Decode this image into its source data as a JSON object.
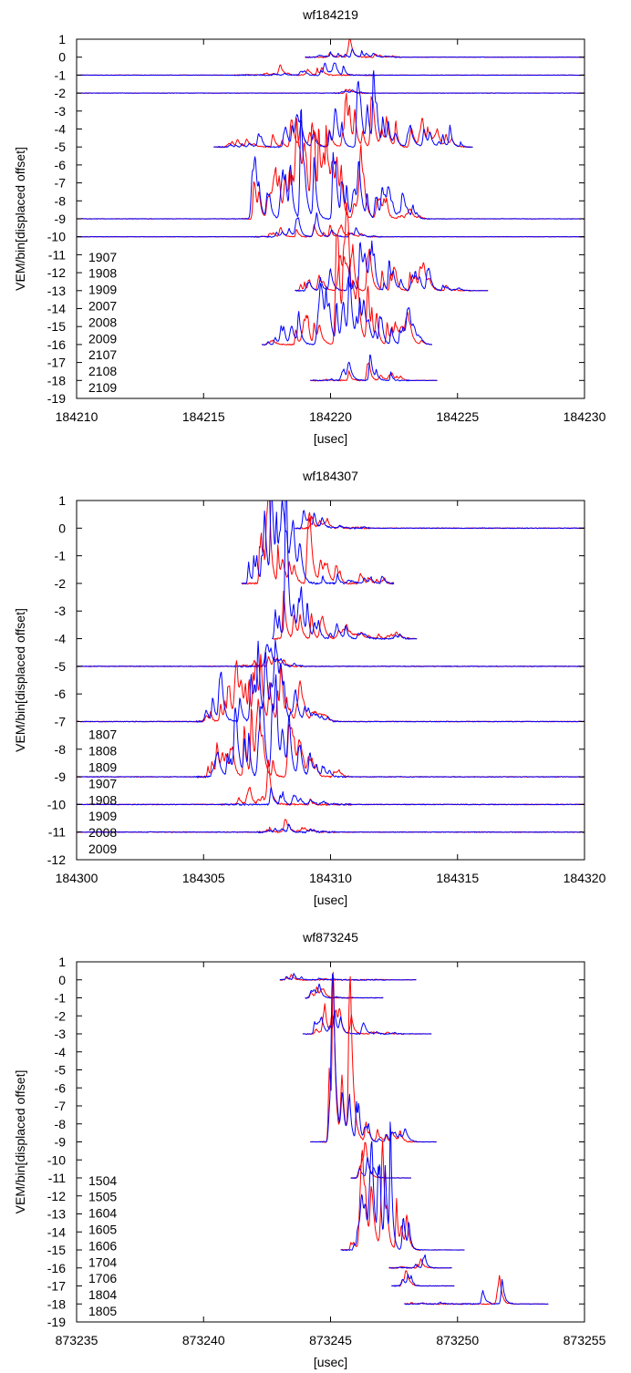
{
  "chart_data": [
    {
      "type": "line",
      "title": "wf184219",
      "xlabel": "[usec]",
      "ylabel": "VEM/bin[displaced offset]",
      "xlim": [
        184210,
        184230
      ],
      "ylim": [
        -19,
        1
      ],
      "xticks": [
        "184210",
        "184215",
        "184220",
        "184225",
        "184230"
      ],
      "yticks": [
        "1",
        "0",
        "-1",
        "-2",
        "-3",
        "-4",
        "-5",
        "-6",
        "-7",
        "-8",
        "-9",
        "-10",
        "-11",
        "-12",
        "-13",
        "-14",
        "-15",
        "-16",
        "-17",
        "-18",
        "-19"
      ],
      "legend_position": "bottom-left",
      "labels": [
        "1907",
        "1908",
        "1909",
        "2007",
        "2008",
        "2009",
        "2107",
        "2108",
        "2109"
      ],
      "colors": {
        "red": "#ff0000",
        "blue": "#0000ff"
      },
      "traces": [
        {
          "baseline": 0,
          "x_start": 184219.0,
          "x_end": 184230,
          "activity": [
            184219.2,
            184222.5
          ],
          "peak_x": 184220.8,
          "peak_amp": 0.5,
          "density": 10
        },
        {
          "baseline": -1,
          "x_start": 184210,
          "x_end": 184230,
          "activity": [
            184216.5,
            184221.5
          ],
          "peak_x": 184219.7,
          "peak_amp": 0.5,
          "density": 14
        },
        {
          "baseline": -2,
          "x_start": 184210,
          "x_end": 184230,
          "activity": [
            184220.4,
            184221.2
          ],
          "peak_x": 184220.8,
          "peak_amp": 0.2,
          "density": 3
        },
        {
          "baseline": -5,
          "x_start": 184215.4,
          "x_end": 184225.6,
          "activity": [
            184215.8,
            184225.2
          ],
          "peak_x": 184221.0,
          "peak_amp": 2.3,
          "density": 40
        },
        {
          "baseline": -9,
          "x_start": 184210,
          "x_end": 184230,
          "activity": [
            184216.8,
            184223.6
          ],
          "peak_x": 184219.3,
          "peak_amp": 3.6,
          "density": 52
        },
        {
          "baseline": -10,
          "x_start": 184210,
          "x_end": 184230,
          "activity": [
            184217.3,
            184221.7
          ],
          "peak_x": 184219.4,
          "peak_amp": 0.8,
          "density": 14
        },
        {
          "baseline": -13,
          "x_start": 184218.6,
          "x_end": 184226.2,
          "activity": [
            184218.8,
            184225.2
          ],
          "peak_x": 184221.5,
          "peak_amp": 1.9,
          "density": 32
        },
        {
          "baseline": -16,
          "x_start": 184217.3,
          "x_end": 184224.0,
          "activity": [
            184217.5,
            184223.6
          ],
          "peak_x": 184220.7,
          "peak_amp": 2.6,
          "density": 44
        },
        {
          "baseline": -18,
          "x_start": 184219.2,
          "x_end": 184224.2,
          "activity": [
            184219.6,
            184222.8
          ],
          "peak_x": 184221.5,
          "peak_amp": 1.1,
          "density": 8
        }
      ]
    },
    {
      "type": "line",
      "title": "wf184307",
      "xlabel": "[usec]",
      "ylabel": "VEM/bin[displaced offset]",
      "xlim": [
        184300,
        184320
      ],
      "ylim": [
        -12,
        1
      ],
      "xticks": [
        "184300",
        "184305",
        "184310",
        "184315",
        "184320"
      ],
      "yticks": [
        "1",
        "0",
        "-1",
        "-2",
        "-3",
        "-4",
        "-5",
        "-6",
        "-7",
        "-8",
        "-9",
        "-10",
        "-11",
        "-12"
      ],
      "legend_position": "bottom-left",
      "labels": [
        "1807",
        "1808",
        "1809",
        "1907",
        "1908",
        "1909",
        "2008",
        "2009"
      ],
      "colors": {
        "red": "#ff0000",
        "blue": "#0000ff"
      },
      "traces": [
        {
          "baseline": 0,
          "x_start": 184308.6,
          "x_end": 184320,
          "activity": [
            184308.8,
            184311.3
          ],
          "peak_x": 184309.3,
          "peak_amp": 0.55,
          "density": 6
        },
        {
          "baseline": -2,
          "x_start": 184306.5,
          "x_end": 184312.5,
          "activity": [
            184306.6,
            184312.3
          ],
          "peak_x": 184307.6,
          "peak_amp": 2.3,
          "density": 28
        },
        {
          "baseline": -4,
          "x_start": 184307.7,
          "x_end": 184313.4,
          "activity": [
            184307.8,
            184312.8
          ],
          "peak_x": 184308.2,
          "peak_amp": 2.1,
          "density": 22
        },
        {
          "baseline": -5,
          "x_start": 184300,
          "x_end": 184320,
          "activity": [
            184306.5,
            184308.6
          ],
          "peak_x": 184307.6,
          "peak_amp": 0.4,
          "density": 8
        },
        {
          "baseline": -7,
          "x_start": 184300,
          "x_end": 184320,
          "activity": [
            184305.0,
            184310.0
          ],
          "peak_x": 184307.1,
          "peak_amp": 1.8,
          "density": 36
        },
        {
          "baseline": -9,
          "x_start": 184300,
          "x_end": 184320,
          "activity": [
            184305.0,
            184310.4
          ],
          "peak_x": 184307.2,
          "peak_amp": 1.8,
          "density": 34
        },
        {
          "baseline": -10,
          "x_start": 184300,
          "x_end": 184320,
          "activity": [
            184306.0,
            184310.5
          ],
          "peak_x": 184307.6,
          "peak_amp": 0.65,
          "density": 9
        },
        {
          "baseline": -11,
          "x_start": 184300,
          "x_end": 184320,
          "activity": [
            184307.4,
            184309.9
          ],
          "peak_x": 184308.3,
          "peak_amp": 0.3,
          "density": 10
        }
      ]
    },
    {
      "type": "line",
      "title": "wf873245",
      "xlabel": "[usec]",
      "ylabel": "VEM/bin[displaced offset]",
      "xlim": [
        873235,
        873255
      ],
      "ylim": [
        -19,
        1
      ],
      "xticks": [
        "873235",
        "873240",
        "873245",
        "873250",
        "873255"
      ],
      "yticks": [
        "1",
        "0",
        "-1",
        "-2",
        "-3",
        "-4",
        "-5",
        "-6",
        "-7",
        "-8",
        "-9",
        "-10",
        "-11",
        "-12",
        "-13",
        "-14",
        "-15",
        "-16",
        "-17",
        "-18",
        "-19"
      ],
      "legend_position": "bottom-left",
      "labels": [
        "1504",
        "1505",
        "1604",
        "1605",
        "1606",
        "1704",
        "1706",
        "1804",
        "1805"
      ],
      "colors": {
        "red": "#ff0000",
        "blue": "#0000ff"
      },
      "traces": [
        {
          "baseline": 0,
          "x_start": 873243.0,
          "x_end": 873248.4,
          "activity": [
            873243.2,
            873246.9
          ],
          "peak_x": 873243.5,
          "peak_amp": 0.35,
          "density": 4
        },
        {
          "baseline": -1,
          "x_start": 873244.0,
          "x_end": 873247.1,
          "activity": [
            873244.2,
            873245.6
          ],
          "peak_x": 873244.5,
          "peak_amp": 0.7,
          "density": 3
        },
        {
          "baseline": -3,
          "x_start": 873243.9,
          "x_end": 873249.0,
          "activity": [
            873244.3,
            873247.6
          ],
          "peak_x": 873245.1,
          "peak_amp": 1.3,
          "density": 12
        },
        {
          "baseline": -9,
          "x_start": 873244.2,
          "x_end": 873249.2,
          "activity": [
            873244.9,
            873248.1
          ],
          "peak_x": 873245.0,
          "peak_amp": 5.0,
          "density": 22
        },
        {
          "baseline": -11,
          "x_start": 873245.8,
          "x_end": 873248.2,
          "activity": [
            873246.1,
            873246.8
          ],
          "peak_x": 873246.4,
          "peak_amp": 1.2,
          "density": 3
        },
        {
          "baseline": -15,
          "x_start": 873245.4,
          "x_end": 873250.3,
          "activity": [
            873245.7,
            873248.3
          ],
          "peak_x": 873247.1,
          "peak_amp": 4.8,
          "density": 16
        },
        {
          "baseline": -16,
          "x_start": 873247.3,
          "x_end": 873249.8,
          "activity": [
            873247.6,
            873248.9
          ],
          "peak_x": 873248.6,
          "peak_amp": 0.6,
          "density": 4
        },
        {
          "baseline": -17,
          "x_start": 873247.4,
          "x_end": 873249.9,
          "activity": [
            873247.8,
            873248.2
          ],
          "peak_x": 873248.0,
          "peak_amp": 0.6,
          "density": 2
        },
        {
          "baseline": -18,
          "x_start": 873247.9,
          "x_end": 873253.6,
          "activity": [
            873248.1,
            873251.9
          ],
          "peak_x": 873251.7,
          "peak_amp": 1.5,
          "density": 3
        }
      ]
    }
  ]
}
